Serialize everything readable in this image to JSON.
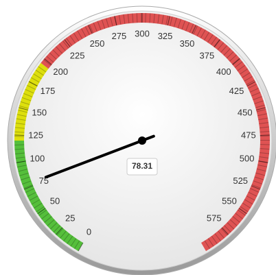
{
  "chart_data": {
    "type": "gauge",
    "value": 78.31,
    "ylim": [
      0,
      600
    ],
    "yticks": [
      0,
      25,
      50,
      75,
      100,
      125,
      150,
      175,
      200,
      225,
      250,
      275,
      300,
      325,
      350,
      375,
      400,
      425,
      450,
      475,
      500,
      525,
      550,
      575
    ],
    "bands": [
      {
        "from": 0,
        "to": 120,
        "color": "#55bf3b"
      },
      {
        "from": 120,
        "to": 195,
        "color": "#dddf0d"
      },
      {
        "from": 195,
        "to": 600,
        "color": "#df5353"
      }
    ],
    "needle_color": "#000000"
  }
}
